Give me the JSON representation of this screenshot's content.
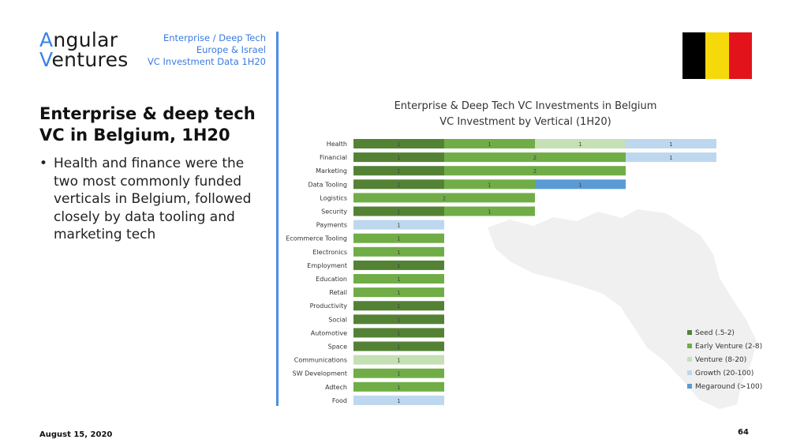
{
  "logo": {
    "line1_accent": "A",
    "line1_rest": "ngular",
    "line2_accent": "V",
    "line2_rest": "entures"
  },
  "header": {
    "line1": "Enterprise / Deep Tech",
    "line2": "Europe & Israel",
    "line3": "VC Investment Data 1H20"
  },
  "slide": {
    "title": "Enterprise & deep tech VC in Belgium, 1H20",
    "bullet": "Health and finance were the two most commonly funded verticals in Belgium, followed closely by data tooling and marketing tech"
  },
  "footer": {
    "date": "August 15, 2020",
    "page": "64"
  },
  "flag_colors": [
    "#000000",
    "#f5d90a",
    "#e3131b"
  ],
  "chart_data": {
    "type": "bar",
    "orientation": "horizontal",
    "stacked": true,
    "title": "Enterprise & Deep Tech VC Investments in Belgium",
    "subtitle": "VC Investment by Vertical (1H20)",
    "categories": [
      "Health",
      "Financial",
      "Marketing",
      "Data Tooling",
      "Logistics",
      "Security",
      "Payments",
      "Ecommerce Tooling",
      "Electronics",
      "Employment",
      "Education",
      "Retail",
      "Productivity",
      "Social",
      "Automotive",
      "Space",
      "Communications",
      "SW Development",
      "Adtech",
      "Food"
    ],
    "series": [
      {
        "name": "Seed (.5-2)",
        "color": "#548235",
        "values": [
          1,
          1,
          1,
          1,
          0,
          1,
          0,
          0,
          0,
          1,
          0,
          0,
          1,
          1,
          1,
          1,
          0,
          0,
          0,
          0
        ]
      },
      {
        "name": "Early Venture (2-8)",
        "color": "#70ad47",
        "values": [
          1,
          2,
          2,
          1,
          2,
          1,
          0,
          1,
          1,
          0,
          1,
          1,
          0,
          0,
          0,
          0,
          0,
          1,
          1,
          0
        ]
      },
      {
        "name": "Venture (8-20)",
        "color": "#c5e0b4",
        "values": [
          1,
          0,
          0,
          0,
          0,
          0,
          0,
          0,
          0,
          0,
          0,
          0,
          0,
          0,
          0,
          0,
          1,
          0,
          0,
          0
        ]
      },
      {
        "name": "Growth (20-100)",
        "color": "#bdd7ee",
        "values": [
          1,
          1,
          0,
          0,
          0,
          0,
          1,
          0,
          0,
          0,
          0,
          0,
          0,
          0,
          0,
          0,
          0,
          0,
          0,
          1
        ]
      },
      {
        "name": "Megaround (>100)",
        "color": "#5b9bd5",
        "values": [
          0,
          0,
          0,
          1,
          0,
          0,
          0,
          0,
          0,
          0,
          0,
          0,
          0,
          0,
          0,
          0,
          0,
          0,
          0,
          0
        ]
      }
    ],
    "xlim": [
      0,
      4
    ],
    "legend_position": "bottom-right"
  }
}
